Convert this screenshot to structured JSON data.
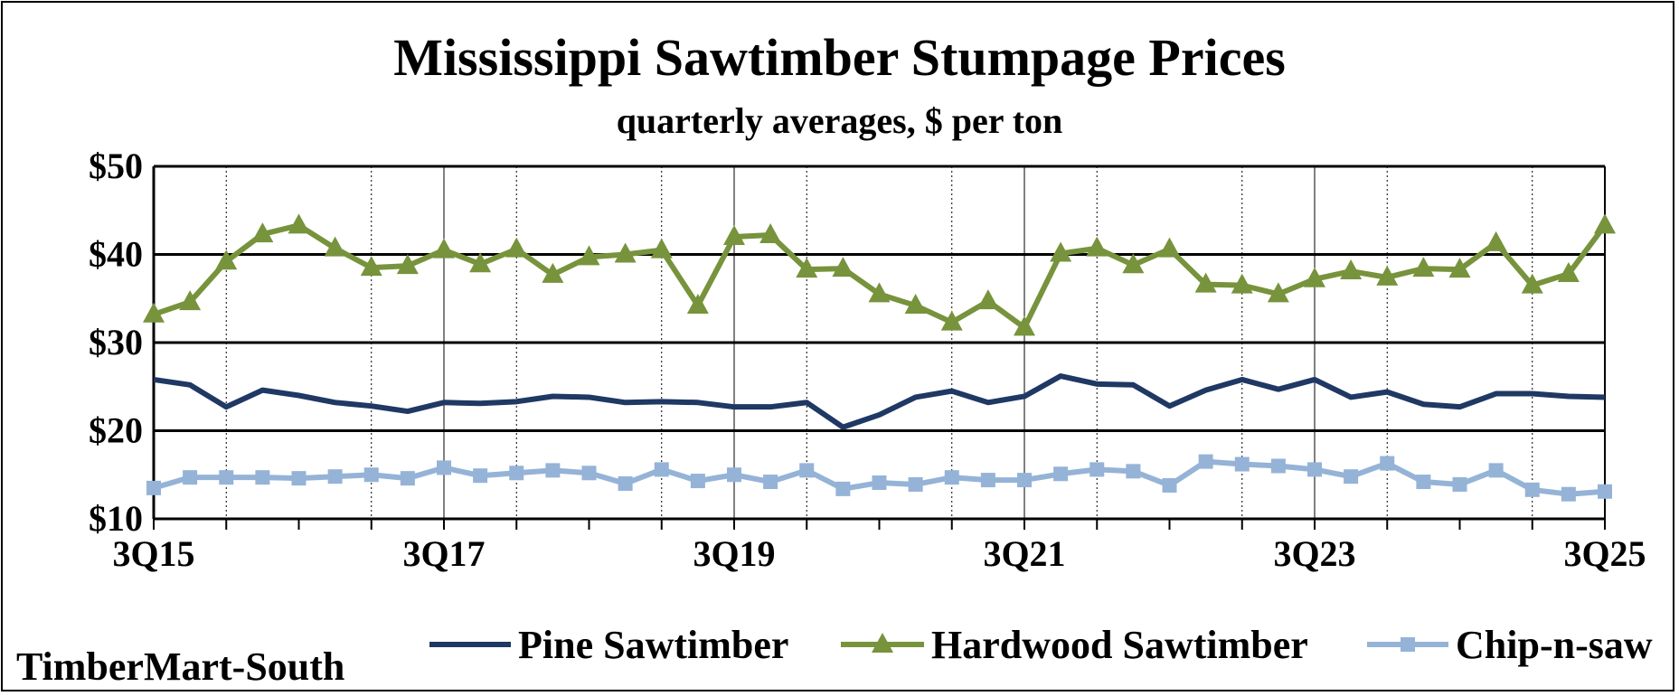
{
  "chart_data": {
    "type": "line",
    "title": "Mississippi Sawtimber Stumpage Prices",
    "subtitle": "quarterly averages, $ per ton",
    "source": "TimberMart-South",
    "ylim": [
      10,
      50
    ],
    "ytick_labels": [
      "$10",
      "$20",
      "$30",
      "$40",
      "$50"
    ],
    "ytick_values": [
      10,
      20,
      30,
      40,
      50
    ],
    "x": [
      "3Q15",
      "4Q15",
      "1Q16",
      "2Q16",
      "3Q16",
      "4Q16",
      "1Q17",
      "2Q17",
      "3Q17",
      "4Q17",
      "1Q18",
      "2Q18",
      "3Q18",
      "4Q18",
      "1Q19",
      "2Q19",
      "3Q19",
      "4Q19",
      "1Q20",
      "2Q20",
      "3Q20",
      "4Q20",
      "1Q21",
      "2Q21",
      "3Q21",
      "4Q21",
      "1Q22",
      "2Q22",
      "3Q22",
      "4Q22",
      "1Q23",
      "2Q23",
      "3Q23",
      "4Q23",
      "1Q24",
      "2Q24",
      "3Q24",
      "4Q24",
      "1Q25",
      "2Q25",
      "3Q25"
    ],
    "xtick_labels": [
      "3Q15",
      "3Q17",
      "3Q19",
      "3Q21",
      "3Q23",
      "3Q25"
    ],
    "grid": true,
    "legend_position": "bottom",
    "series": [
      {
        "name": "Pine Sawtimber",
        "color": "#1f3864",
        "marker": "none",
        "values": [
          25.8,
          25.2,
          22.7,
          24.6,
          24.0,
          23.2,
          22.8,
          22.2,
          23.2,
          23.1,
          23.3,
          23.9,
          23.8,
          23.2,
          23.3,
          23.2,
          22.7,
          22.7,
          23.2,
          20.4,
          21.8,
          23.8,
          24.5,
          23.2,
          23.9,
          26.2,
          25.3,
          25.2,
          22.8,
          24.6,
          25.8,
          24.7,
          25.8,
          23.8,
          24.4,
          23.0,
          22.7,
          24.2,
          24.2,
          23.9,
          23.8
        ]
      },
      {
        "name": "Hardwood Sawtimber",
        "color": "#77933c",
        "marker": "triangle",
        "values": [
          33.2,
          34.6,
          39.2,
          42.3,
          43.3,
          40.7,
          38.5,
          38.7,
          40.5,
          38.9,
          40.6,
          37.7,
          39.7,
          40.0,
          40.5,
          34.2,
          42.0,
          42.2,
          38.3,
          38.4,
          35.5,
          34.2,
          32.3,
          34.7,
          31.7,
          40.1,
          40.7,
          38.8,
          40.6,
          36.6,
          36.5,
          35.5,
          37.2,
          38.1,
          37.4,
          38.4,
          38.3,
          41.3,
          36.5,
          37.8,
          43.3
        ]
      },
      {
        "name": "Chip-n-saw",
        "color": "#95b3d7",
        "marker": "square",
        "values": [
          13.5,
          14.7,
          14.7,
          14.7,
          14.6,
          14.8,
          15.0,
          14.6,
          15.8,
          14.9,
          15.2,
          15.5,
          15.2,
          14.0,
          15.6,
          14.3,
          15.0,
          14.2,
          15.5,
          13.4,
          14.1,
          13.9,
          14.7,
          14.4,
          14.4,
          15.1,
          15.6,
          15.4,
          13.8,
          16.5,
          16.2,
          16.0,
          15.6,
          14.8,
          16.3,
          14.2,
          13.9,
          15.5,
          13.3,
          12.8,
          13.1
        ]
      }
    ]
  }
}
